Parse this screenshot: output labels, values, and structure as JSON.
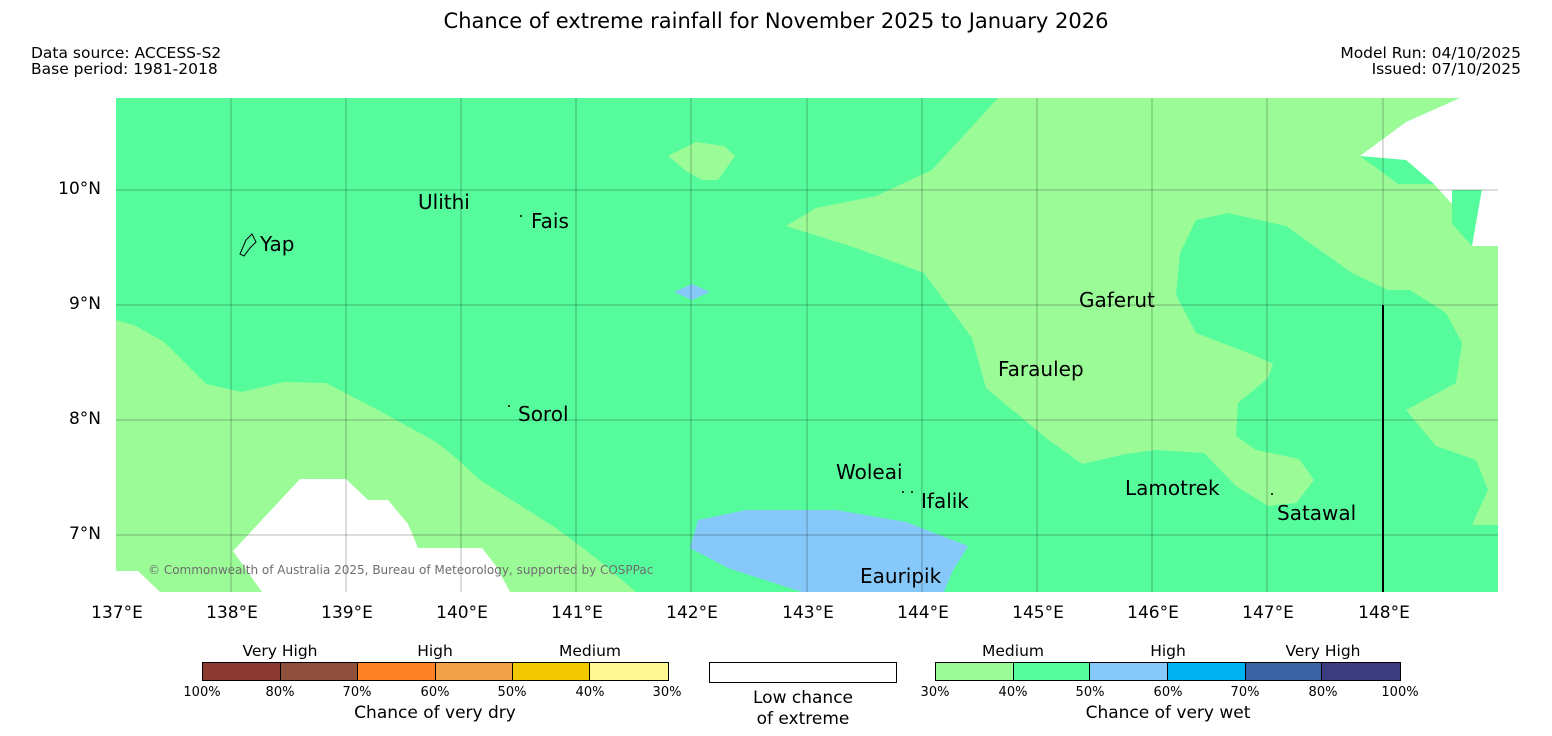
{
  "header": {
    "title": "Chance of extreme rainfall for November 2025 to January 2026",
    "data_source": "Data source: ACCESS-S2",
    "base_period": "Base period: 1981-2018",
    "model_run": "Model Run: 04/10/2025",
    "issued": "Issued: 07/10/2025"
  },
  "map": {
    "lat_labels": [
      "10°N",
      "9°N",
      "8°N",
      "7°N"
    ],
    "lon_labels": [
      "137°E",
      "138°E",
      "139°E",
      "140°E",
      "141°E",
      "142°E",
      "143°E",
      "144°E",
      "145°E",
      "146°E",
      "147°E",
      "148°E"
    ],
    "places": [
      "Ulithi",
      "Fais",
      "Yap",
      "Gaferut",
      "Faraulep",
      "Sorol",
      "Woleai",
      "Ifalik",
      "Lamotrek",
      "Satawal",
      "Eauripik"
    ],
    "copyright": "© Commonwealth of Australia 2025, Bureau of Meteorology, supported by COSPPac",
    "colors": {
      "medium_wet": "#9bfc97",
      "medium_wet_40": "#56fc9c",
      "high_wet": "#86c8fa",
      "land": "#ffffff"
    }
  },
  "legend": {
    "dry": {
      "categories": [
        "Very High",
        "High",
        "Medium"
      ],
      "ticks": [
        "100%",
        "80%",
        "70%",
        "60%",
        "50%",
        "40%",
        "30%"
      ],
      "colors": [
        "#8b3a32",
        "#8e4f3c",
        "#ff8227",
        "#f29f4a",
        "#f2c900",
        "#fff791"
      ],
      "caption": "Chance of very dry"
    },
    "low": {
      "caption_line1": "Low chance",
      "caption_line2": "of extreme"
    },
    "wet": {
      "categories": [
        "Medium",
        "High",
        "Very High"
      ],
      "ticks": [
        "30%",
        "40%",
        "50%",
        "60%",
        "70%",
        "80%",
        "100%"
      ],
      "colors": [
        "#9bfc97",
        "#56fc9c",
        "#86c8fa",
        "#00b2f0",
        "#3a64a4",
        "#3d3c7e"
      ],
      "caption": "Chance of very wet"
    }
  }
}
